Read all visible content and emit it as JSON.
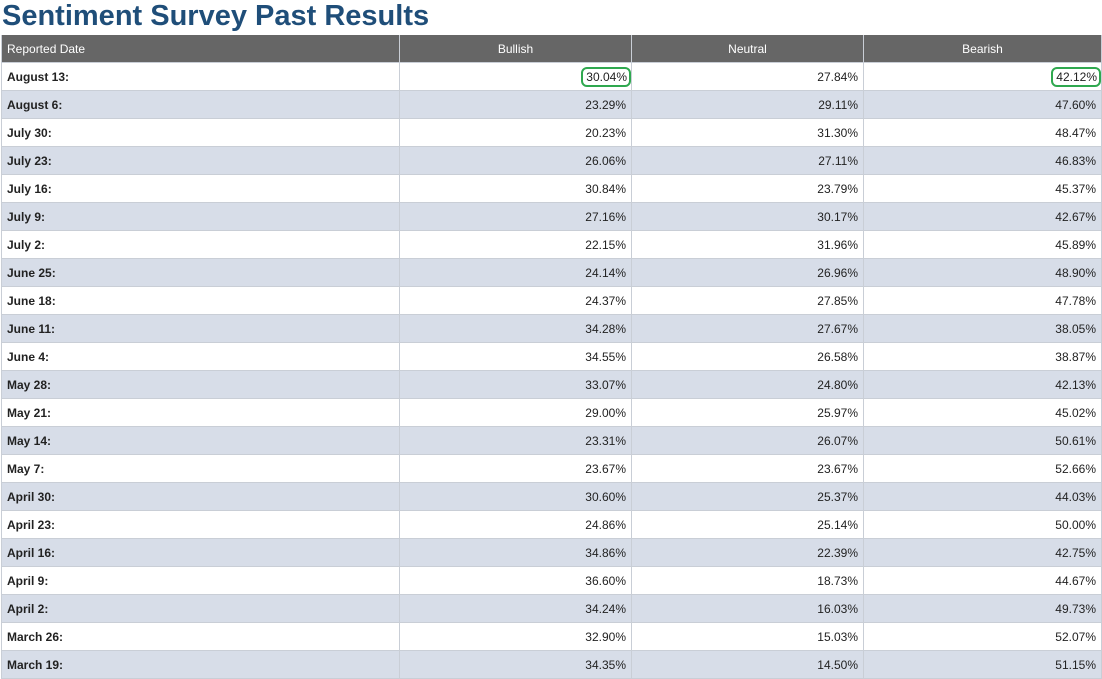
{
  "page": {
    "title": "Sentiment Survey Past Results"
  },
  "table": {
    "headers": {
      "date": "Reported Date",
      "bullish": "Bullish",
      "neutral": "Neutral",
      "bearish": "Bearish"
    },
    "highlight_color": "#2fa84f",
    "highlighted_cells": [
      {
        "row": 0,
        "column": "bullish"
      },
      {
        "row": 0,
        "column": "bearish"
      }
    ],
    "rows": [
      {
        "date": "August 13:",
        "bullish": "30.04%",
        "neutral": "27.84%",
        "bearish": "42.12%"
      },
      {
        "date": "August 6:",
        "bullish": "23.29%",
        "neutral": "29.11%",
        "bearish": "47.60%"
      },
      {
        "date": "July 30:",
        "bullish": "20.23%",
        "neutral": "31.30%",
        "bearish": "48.47%"
      },
      {
        "date": "July 23:",
        "bullish": "26.06%",
        "neutral": "27.11%",
        "bearish": "46.83%"
      },
      {
        "date": "July 16:",
        "bullish": "30.84%",
        "neutral": "23.79%",
        "bearish": "45.37%"
      },
      {
        "date": "July 9:",
        "bullish": "27.16%",
        "neutral": "30.17%",
        "bearish": "42.67%"
      },
      {
        "date": "July 2:",
        "bullish": "22.15%",
        "neutral": "31.96%",
        "bearish": "45.89%"
      },
      {
        "date": "June 25:",
        "bullish": "24.14%",
        "neutral": "26.96%",
        "bearish": "48.90%"
      },
      {
        "date": "June 18:",
        "bullish": "24.37%",
        "neutral": "27.85%",
        "bearish": "47.78%"
      },
      {
        "date": "June 11:",
        "bullish": "34.28%",
        "neutral": "27.67%",
        "bearish": "38.05%"
      },
      {
        "date": "June 4:",
        "bullish": "34.55%",
        "neutral": "26.58%",
        "bearish": "38.87%"
      },
      {
        "date": "May 28:",
        "bullish": "33.07%",
        "neutral": "24.80%",
        "bearish": "42.13%"
      },
      {
        "date": "May 21:",
        "bullish": "29.00%",
        "neutral": "25.97%",
        "bearish": "45.02%"
      },
      {
        "date": "May 14:",
        "bullish": "23.31%",
        "neutral": "26.07%",
        "bearish": "50.61%"
      },
      {
        "date": "May 7:",
        "bullish": "23.67%",
        "neutral": "23.67%",
        "bearish": "52.66%"
      },
      {
        "date": "April 30:",
        "bullish": "30.60%",
        "neutral": "25.37%",
        "bearish": "44.03%"
      },
      {
        "date": "April 23:",
        "bullish": "24.86%",
        "neutral": "25.14%",
        "bearish": "50.00%"
      },
      {
        "date": "April 16:",
        "bullish": "34.86%",
        "neutral": "22.39%",
        "bearish": "42.75%"
      },
      {
        "date": "April 9:",
        "bullish": "36.60%",
        "neutral": "18.73%",
        "bearish": "44.67%"
      },
      {
        "date": "April 2:",
        "bullish": "34.24%",
        "neutral": "16.03%",
        "bearish": "49.73%"
      },
      {
        "date": "March 26:",
        "bullish": "32.90%",
        "neutral": "15.03%",
        "bearish": "52.07%"
      },
      {
        "date": "March 19:",
        "bullish": "34.35%",
        "neutral": "14.50%",
        "bearish": "51.15%"
      }
    ]
  }
}
